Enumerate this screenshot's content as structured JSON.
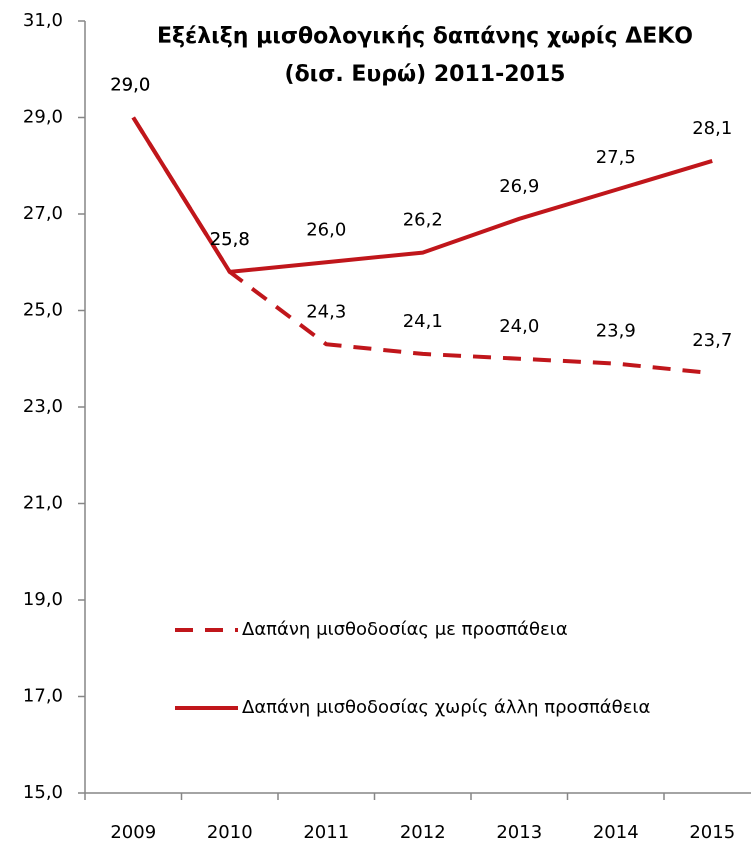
{
  "chart_data": {
    "type": "line",
    "title": [
      "Εξέλιξη μισθολογικής δαπάνης  χωρίς ΔΕΚΟ",
      "(δισ. Ευρώ) 2011-2015"
    ],
    "categories": [
      "2009",
      "2010",
      "2011",
      "2012",
      "2013",
      "2014",
      "2015"
    ],
    "series": [
      {
        "name": "Δαπάνη μισθοδοσίας με προσπάθεια",
        "color": "#c0161b",
        "dashed": true,
        "values": [
          29.0,
          25.8,
          24.3,
          24.1,
          24.0,
          23.9,
          23.7
        ],
        "value_labels": [
          "29,0",
          "25,8",
          "24,3",
          "24,1",
          "24,0",
          "23,9",
          "23,7"
        ]
      },
      {
        "name": "Δαπάνη μισθοδοσίας χωρίς άλλη προσπάθεια",
        "color": "#c0161b",
        "dashed": false,
        "values": [
          29.0,
          25.8,
          26.0,
          26.2,
          26.9,
          27.5,
          28.1
        ],
        "value_labels": [
          "29,0",
          "25,8",
          "26,0",
          "26,2",
          "26,9",
          "27,5",
          "28,1"
        ]
      }
    ],
    "ylim": [
      15,
      31
    ],
    "yticks": [
      {
        "value": 15,
        "label": "15,0"
      },
      {
        "value": 17,
        "label": "17,0"
      },
      {
        "value": 19,
        "label": "19,0"
      },
      {
        "value": 21,
        "label": "21,0"
      },
      {
        "value": 23,
        "label": "23,0"
      },
      {
        "value": 25,
        "label": "25,0"
      },
      {
        "value": 27,
        "label": "27,0"
      },
      {
        "value": 29,
        "label": "29,0"
      },
      {
        "value": 31,
        "label": "31,0"
      }
    ],
    "grid": false,
    "legend": "center"
  }
}
